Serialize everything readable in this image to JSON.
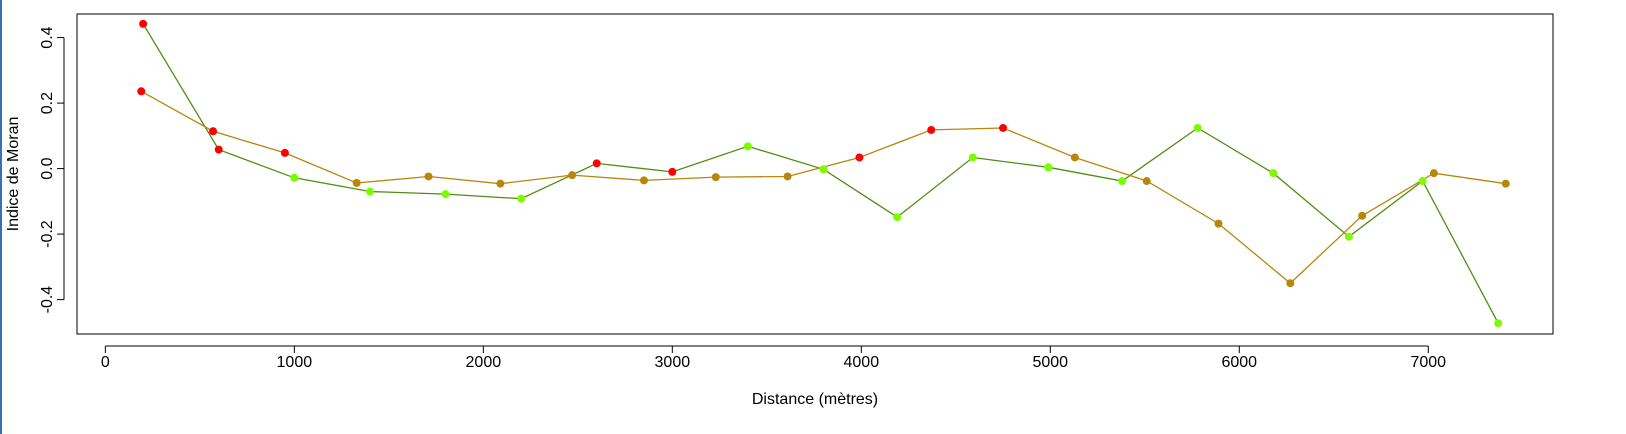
{
  "chart_data": {
    "type": "line",
    "title": "",
    "xlabel": "Distance (mètres)",
    "ylabel": "Indice de Moran",
    "xlim": [
      -150,
      7660
    ],
    "ylim": [
      -0.505,
      0.472
    ],
    "xticks": [
      0,
      1000,
      2000,
      3000,
      4000,
      5000,
      6000,
      7000
    ],
    "yticks": [
      -0.4,
      -0.2,
      0.0,
      0.2,
      0.4
    ],
    "xtick_labels": [
      "0",
      "1000",
      "2000",
      "3000",
      "4000",
      "5000",
      "6000",
      "7000"
    ],
    "ytick_labels": [
      "-0.4",
      "-0.2",
      "0.0",
      "0.2",
      "0.4"
    ],
    "grid": false,
    "legend": "none",
    "series": [
      {
        "color": "#4f8e13",
        "x": [
          200,
          600,
          1000,
          1400,
          1800,
          2200,
          2600,
          3000,
          3400,
          3800,
          4190,
          4590,
          4990,
          5380,
          5780,
          6180,
          6580,
          6970,
          7370
        ],
        "y": [
          0.442,
          0.058,
          -0.028,
          -0.07,
          -0.078,
          -0.092,
          0.016,
          -0.01,
          0.068,
          -0.002,
          -0.148,
          0.034,
          0.004,
          -0.038,
          0.124,
          -0.014,
          -0.208,
          -0.038,
          -0.472
        ],
        "point_colors": [
          "#ff0000",
          "#ff0000",
          "#7cfc00",
          "#7cfc00",
          "#7cfc00",
          "#7cfc00",
          "#ff0000",
          "#ff0000",
          "#7cfc00",
          "#7cfc00",
          "#7cfc00",
          "#7cfc00",
          "#7cfc00",
          "#7cfc00",
          "#7cfc00",
          "#7cfc00",
          "#7cfc00",
          "#7cfc00",
          "#7cfc00"
        ]
      },
      {
        "color": "#b8860b",
        "x": [
          190,
          570,
          950,
          1330,
          1710,
          2090,
          2470,
          2850,
          3230,
          3610,
          3990,
          4370,
          4750,
          5130,
          5510,
          5890,
          6270,
          6650,
          7030,
          7410
        ],
        "y": [
          0.236,
          0.114,
          0.048,
          -0.044,
          -0.024,
          -0.046,
          -0.02,
          -0.036,
          -0.026,
          -0.024,
          0.034,
          0.118,
          0.124,
          0.034,
          -0.038,
          -0.168,
          -0.35,
          -0.144,
          -0.014,
          -0.046
        ],
        "point_colors": [
          "#ff0000",
          "#ff0000",
          "#ff0000",
          "#b8860b",
          "#b8860b",
          "#b8860b",
          "#b8860b",
          "#b8860b",
          "#b8860b",
          "#b8860b",
          "#ff0000",
          "#ff0000",
          "#ff0000",
          "#b8860b",
          "#b8860b",
          "#b8860b",
          "#b8860b",
          "#b8860b",
          "#b8860b",
          "#b8860b"
        ]
      }
    ]
  }
}
